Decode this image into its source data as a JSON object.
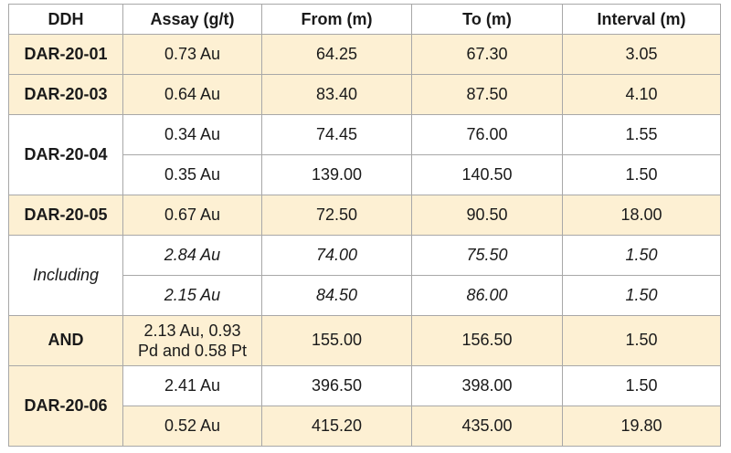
{
  "headers": [
    "DDH",
    "Assay (g/t)",
    "From (m)",
    "To (m)",
    "Interval (m)"
  ],
  "rows": {
    "r1": {
      "ddh": "DAR-20-01",
      "assay": "0.73 Au",
      "from": "64.25",
      "to": "67.30",
      "interval": "3.05"
    },
    "r2": {
      "ddh": "DAR-20-03",
      "assay": "0.64 Au",
      "from": "83.40",
      "to": "87.50",
      "interval": "4.10"
    },
    "r3": {
      "ddh": "DAR-20-04",
      "assay": "0.34 Au",
      "from": "74.45",
      "to": "76.00",
      "interval": "1.55"
    },
    "r4": {
      "assay": "0.35 Au",
      "from": "139.00",
      "to": "140.50",
      "interval": "1.50"
    },
    "r5": {
      "ddh": "DAR-20-05",
      "assay": "0.67 Au",
      "from": "72.50",
      "to": "90.50",
      "interval": "18.00"
    },
    "r6": {
      "ddh": "Including",
      "assay": "2.84 Au",
      "from": "74.00",
      "to": "75.50",
      "interval": "1.50"
    },
    "r7": {
      "assay": "2.15 Au",
      "from": "84.50",
      "to": "86.00",
      "interval": "1.50"
    },
    "r8": {
      "ddh": "AND",
      "assay_line1": "2.13 Au, 0.93",
      "assay_line2": "Pd and 0.58 Pt",
      "from": "155.00",
      "to": "156.50",
      "interval": "1.50"
    },
    "r9": {
      "ddh": "DAR-20-06",
      "assay": "2.41 Au",
      "from": "396.50",
      "to": "398.00",
      "interval": "1.50"
    },
    "r10": {
      "assay": "0.52 Au",
      "from": "415.20",
      "to": "435.00",
      "interval": "19.80"
    }
  },
  "colors": {
    "shade": "#fdf0d3",
    "border": "#a8a8a8",
    "text": "#1a1a1a"
  }
}
